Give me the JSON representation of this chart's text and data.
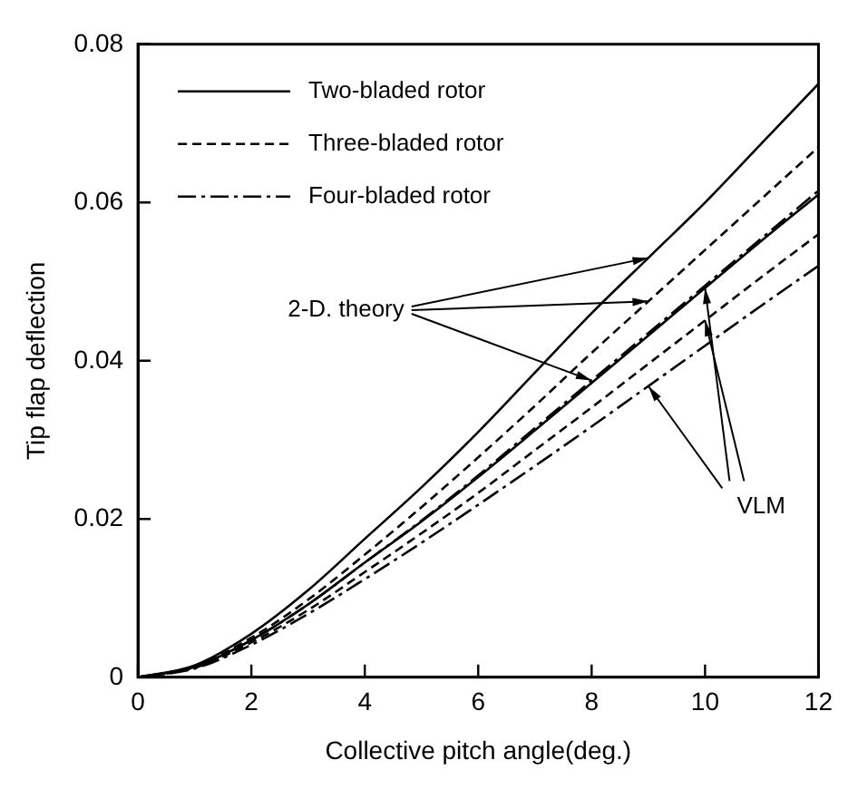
{
  "chart_data": {
    "type": "line",
    "xlabel": "Collective pitch angle(deg.)",
    "ylabel": "Tip flap deflection",
    "x": [
      0,
      1,
      2,
      3,
      4,
      5,
      6,
      7,
      8,
      9,
      10,
      11,
      12
    ],
    "series": [
      {
        "name": "Two-bladed rotor",
        "color": "#000000",
        "line_style": "solid",
        "values": [
          0,
          0.0015,
          0.0055,
          0.011,
          0.0175,
          0.024,
          0.031,
          0.0385,
          0.046,
          0.053,
          0.06,
          0.0675,
          0.075
        ]
      },
      {
        "name": "Three-bladed rotor",
        "color": "#000000",
        "line_style": "dashed",
        "values": [
          0,
          0.0014,
          0.005,
          0.0098,
          0.0155,
          0.0215,
          0.0278,
          0.0343,
          0.041,
          0.0475,
          0.054,
          0.0605,
          0.067
        ]
      },
      {
        "name": "Four-bladed rotor",
        "color": "#000000",
        "line_style": "dashdot",
        "values": [
          0,
          0.0013,
          0.0047,
          0.0092,
          0.0145,
          0.0198,
          0.0255,
          0.0315,
          0.0375,
          0.0435,
          0.0495,
          0.0555,
          0.0615
        ]
      },
      {
        "color": "#000000",
        "line_style": "solid",
        "values": [
          0,
          0.0013,
          0.0047,
          0.0092,
          0.0145,
          0.0197,
          0.0253,
          0.0312,
          0.0372,
          0.0432,
          0.0492,
          0.0552,
          0.061
        ]
      },
      {
        "color": "#000000",
        "line_style": "dashed",
        "values": [
          0,
          0.0012,
          0.0044,
          0.0085,
          0.0133,
          0.0182,
          0.0233,
          0.0287,
          0.0341,
          0.0396,
          0.0451,
          0.0506,
          0.056
        ]
      },
      {
        "color": "#000000",
        "line_style": "dashdot",
        "values": [
          0,
          0.0011,
          0.0041,
          0.008,
          0.0124,
          0.017,
          0.0218,
          0.0267,
          0.0317,
          0.0368,
          0.0419,
          0.047,
          0.052
        ]
      }
    ],
    "xlim": [
      0,
      12
    ],
    "xticks": [
      0,
      2,
      4,
      6,
      8,
      10,
      12
    ],
    "ylim": [
      0,
      0.08
    ],
    "yticks": [
      0,
      0.02,
      0.04,
      0.06,
      0.08
    ],
    "grid": false,
    "legend": "top left",
    "marker": "none",
    "annotations": [
      {
        "text": "2-D. theory",
        "x": 9,
        "y": 0.053
      },
      {
        "text": "VLM",
        "x": 9,
        "y": 0.0368
      }
    ]
  }
}
